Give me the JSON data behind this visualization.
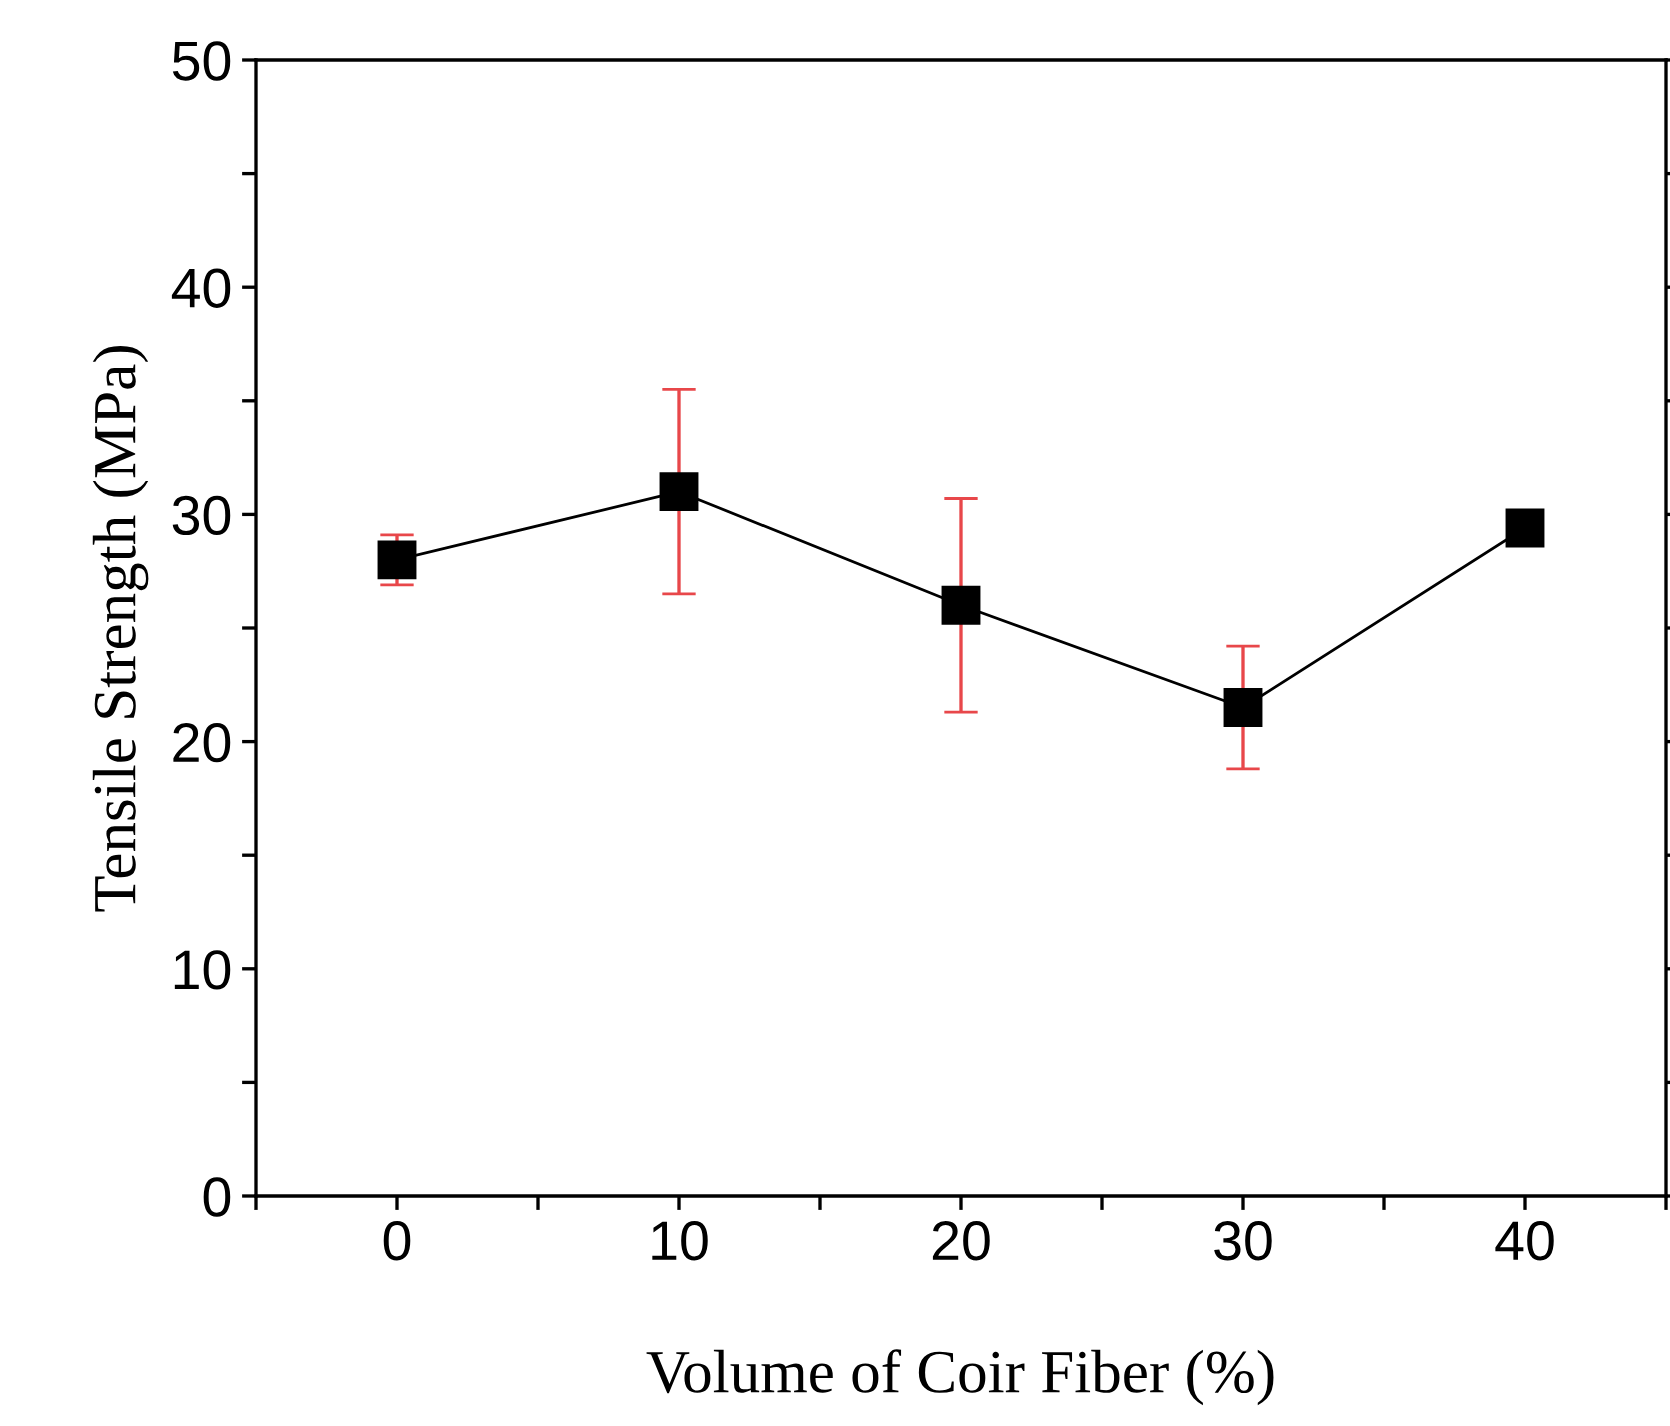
{
  "chart_data": {
    "type": "line",
    "xlabel": "Volume of Coir Fiber (%)",
    "ylabel": "Tensile Strength (MPa)",
    "x": [
      0,
      10,
      20,
      30,
      40
    ],
    "series": [
      {
        "color": "#000000",
        "values": [
          28.0,
          31.0,
          26.0,
          21.5,
          29.4
        ],
        "errors": [
          1.1,
          4.5,
          4.7,
          2.7,
          null
        ]
      }
    ],
    "xlim": [
      -5,
      45
    ],
    "ylim": [
      0,
      50
    ],
    "xticks": [
      {
        "value": -5,
        "label": null
      },
      0,
      {
        "value": 5,
        "label": null
      },
      10,
      {
        "value": 15,
        "label": null
      },
      20,
      {
        "value": 25,
        "label": null
      },
      30,
      {
        "value": 35,
        "label": null
      },
      40,
      {
        "value": 45,
        "label": null
      }
    ],
    "yticks": [
      0,
      {
        "value": 5,
        "label": null
      },
      10,
      {
        "value": 15,
        "label": null
      },
      20,
      {
        "value": 25,
        "label": null
      },
      30,
      {
        "value": 35,
        "label": null
      },
      40,
      {
        "value": 45,
        "label": null
      },
      50
    ],
    "marker": "square",
    "line_style": "solid",
    "grid": false,
    "legend": false
  }
}
